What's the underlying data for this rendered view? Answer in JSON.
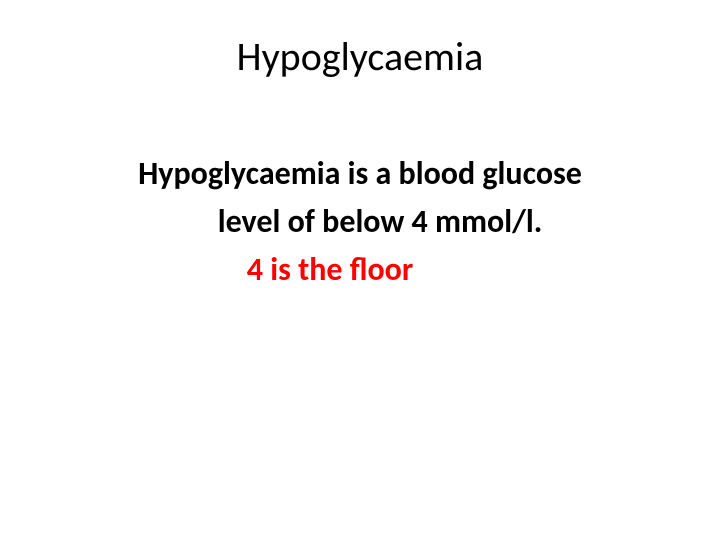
{
  "slide": {
    "title": "Hypoglycaemia",
    "line1": "Hypoglycaemia is a blood glucose",
    "line2": "level of below 4 mmol/l.",
    "line3": "4 is the floor",
    "title_color": "#000000",
    "body_color": "#000000",
    "emphasis_color": "#ff0000",
    "background_color": "#ffffff",
    "title_fontsize": 40,
    "body_fontsize": 32,
    "font_family": "Calibri"
  }
}
